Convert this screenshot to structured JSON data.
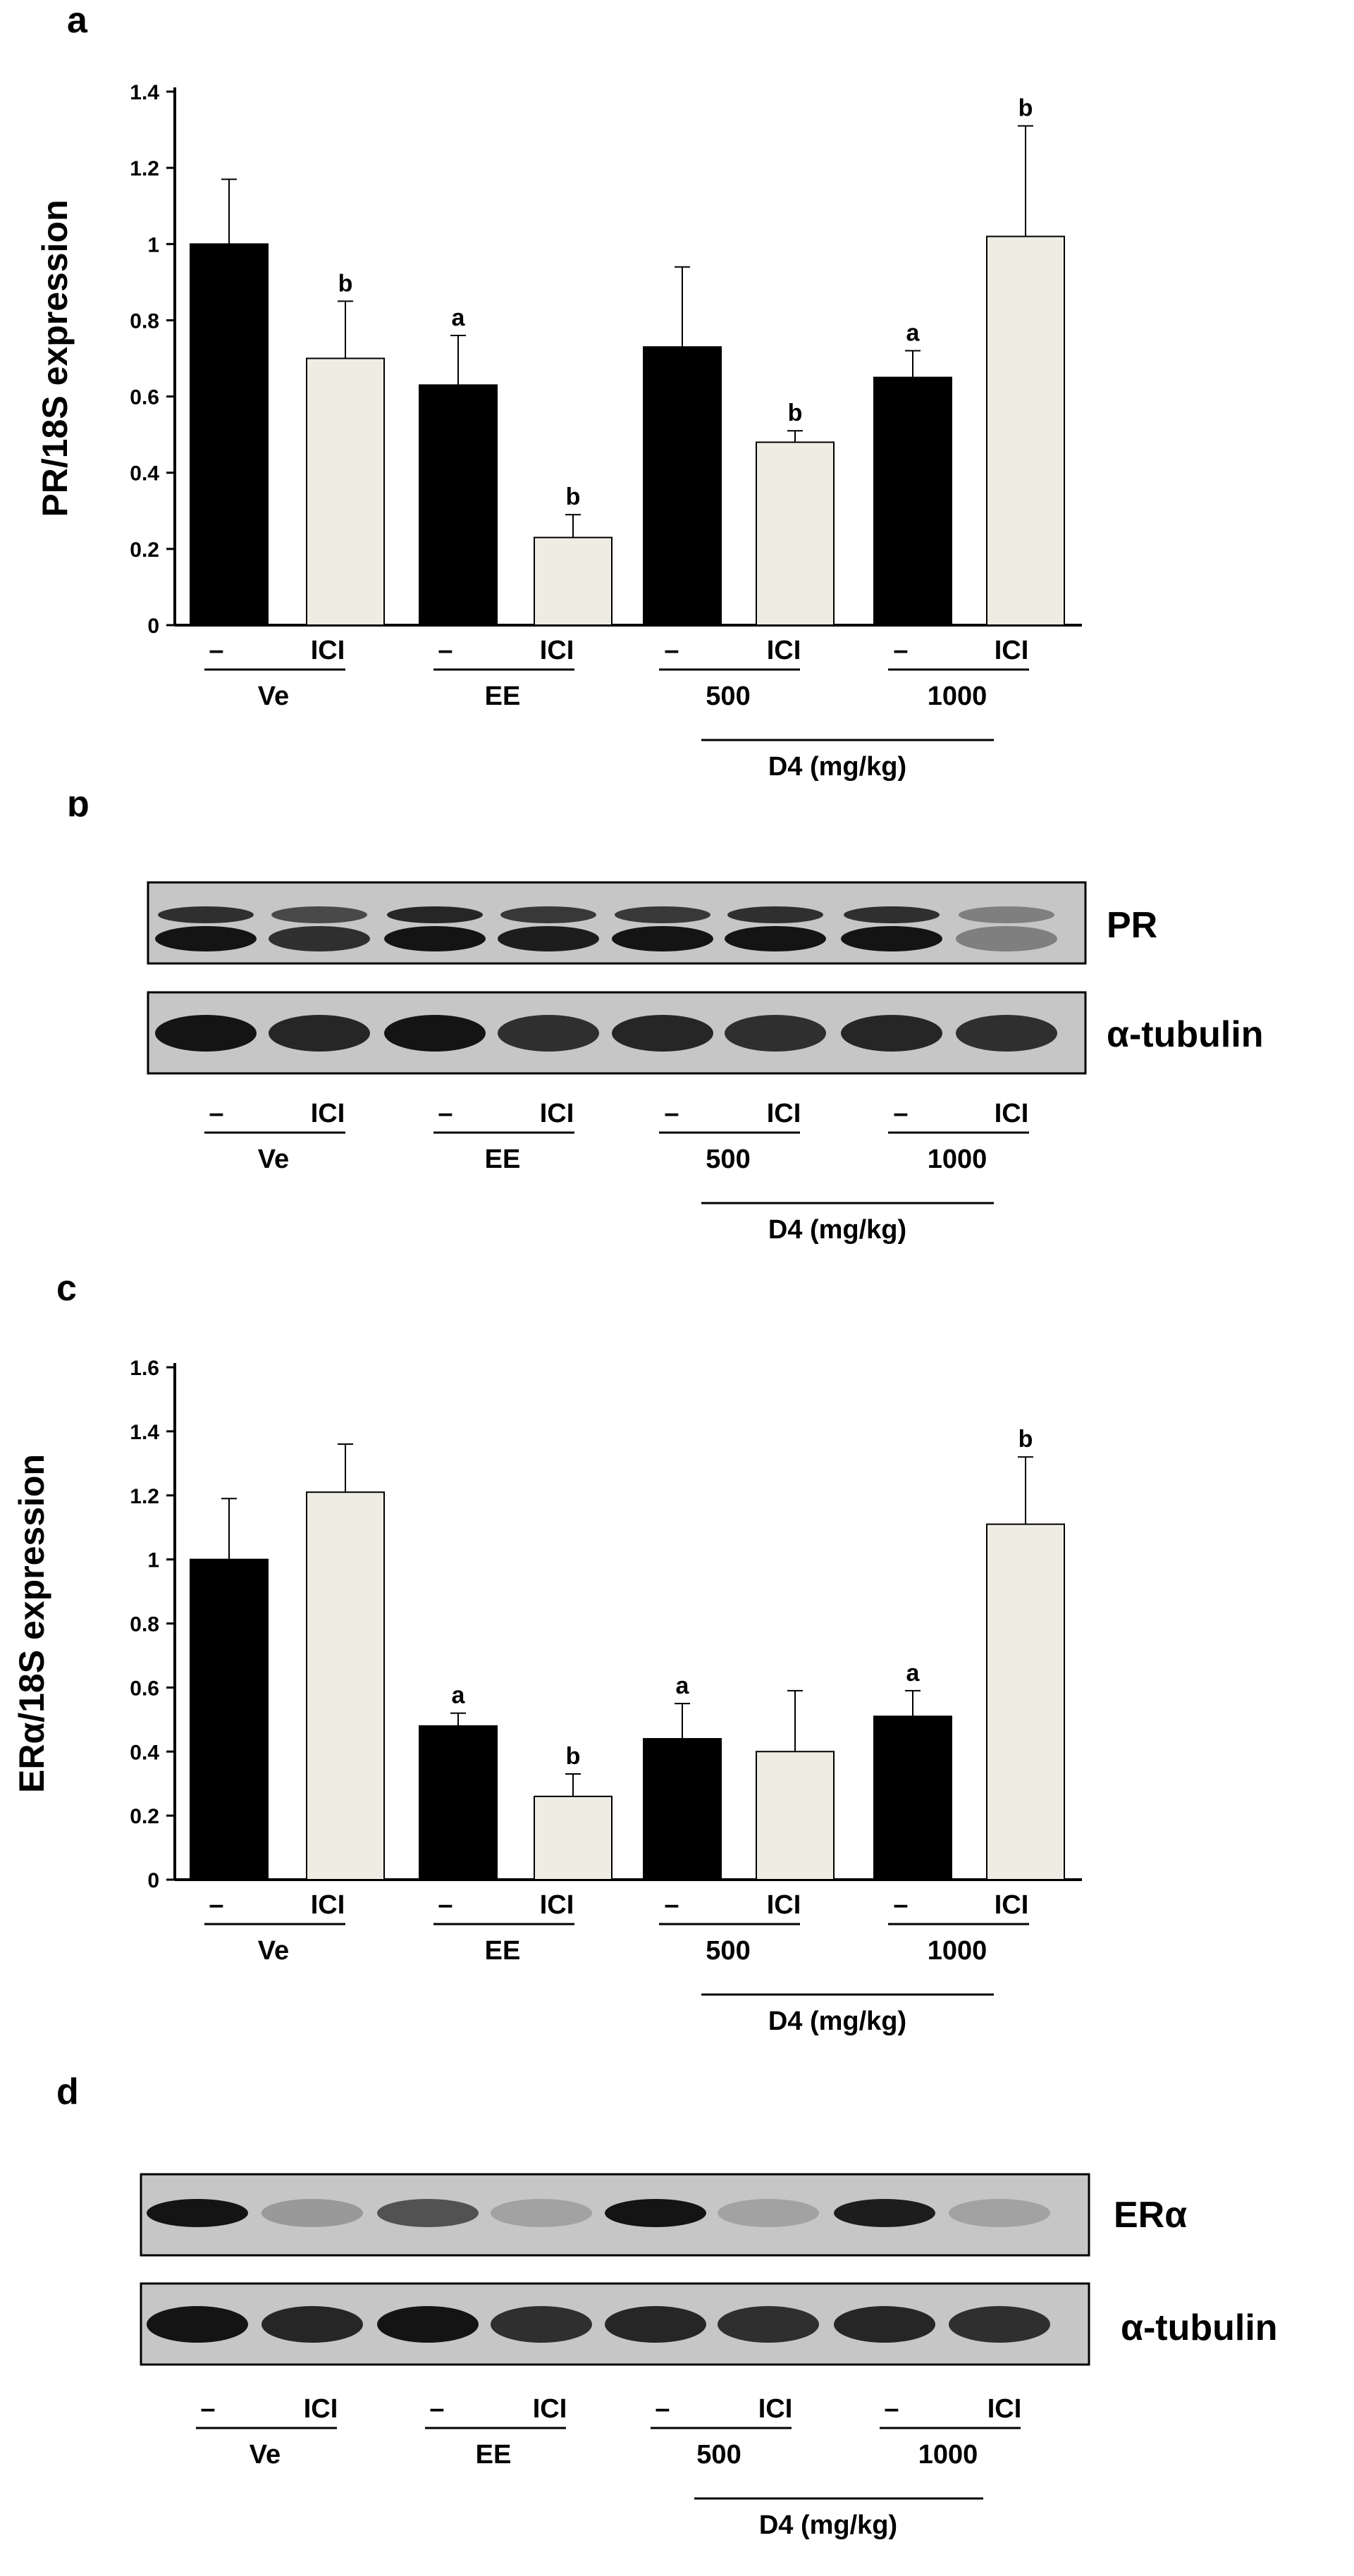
{
  "panels": {
    "a": {
      "letter": "a"
    },
    "b": {
      "letter": "b",
      "protein_label": "PR",
      "loading_label": "α-tubulin"
    },
    "c": {
      "letter": "c"
    },
    "d": {
      "letter": "d",
      "protein_label": "ERα",
      "loading_label": "α-tubulin"
    }
  },
  "treatment_labels": {
    "lane_labels": [
      "–",
      "ICI",
      "–",
      "ICI",
      "–",
      "ICI",
      "–",
      "ICI"
    ],
    "groups": [
      "Ve",
      "EE",
      "500",
      "1000"
    ],
    "dose_label": "D4 (mg/kg)"
  },
  "colors": {
    "control_bar": "#000000",
    "ici_bar": "#efede3",
    "blot_background": "#c6c6c6",
    "band": "#141414"
  },
  "blot_band_intensity": {
    "b": {
      "PR_upper": [
        0.85,
        0.7,
        0.9,
        0.8,
        0.8,
        0.85,
        0.85,
        0.4
      ],
      "PR_lower": [
        1.0,
        0.85,
        1.0,
        0.95,
        1.0,
        1.0,
        1.0,
        0.4
      ],
      "alpha_tubulin": [
        1.0,
        0.9,
        1.0,
        0.85,
        0.9,
        0.85,
        0.9,
        0.85
      ]
    },
    "d": {
      "ERa": [
        1.0,
        0.25,
        0.65,
        0.2,
        1.0,
        0.2,
        0.95,
        0.2
      ],
      "alpha_tubulin": [
        1.0,
        0.9,
        1.0,
        0.85,
        0.9,
        0.85,
        0.9,
        0.85
      ]
    }
  },
  "chart_data": [
    {
      "panel": "a",
      "type": "bar",
      "title": "",
      "xlabel": "",
      "ylabel": "PR/18S expression",
      "ylim": [
        0,
        1.4
      ],
      "yticks": [
        "0",
        "0.2",
        "0.4",
        "0.6",
        "0.8",
        "1",
        "1.2",
        "1.4"
      ],
      "grid": false,
      "categories": [
        "Ve –",
        "Ve ICI",
        "EE –",
        "EE ICI",
        "500 –",
        "500 ICI",
        "1000 –",
        "1000 ICI"
      ],
      "values": [
        1.0,
        0.7,
        0.63,
        0.23,
        0.73,
        0.48,
        0.65,
        1.02
      ],
      "errors": [
        0.17,
        0.15,
        0.13,
        0.06,
        0.21,
        0.03,
        0.07,
        0.29
      ],
      "annotations": [
        "",
        "b",
        "a",
        "b",
        "",
        "b",
        "a",
        "b"
      ]
    },
    {
      "panel": "c",
      "type": "bar",
      "title": "",
      "xlabel": "",
      "ylabel": "ERα/18S expression",
      "ylim": [
        0,
        1.6
      ],
      "yticks": [
        "0",
        "0.2",
        "0.4",
        "0.6",
        "0.8",
        "1",
        "1.2",
        "1.4",
        "1.6"
      ],
      "grid": false,
      "categories": [
        "Ve –",
        "Ve ICI",
        "EE –",
        "EE ICI",
        "500 –",
        "500 ICI",
        "1000 –",
        "1000 ICI"
      ],
      "values": [
        1.0,
        1.21,
        0.48,
        0.26,
        0.44,
        0.4,
        0.51,
        1.11
      ],
      "errors": [
        0.19,
        0.15,
        0.04,
        0.07,
        0.11,
        0.19,
        0.08,
        0.21
      ],
      "annotations": [
        "",
        "",
        "a",
        "b",
        "a",
        "",
        "a",
        "b"
      ]
    }
  ]
}
